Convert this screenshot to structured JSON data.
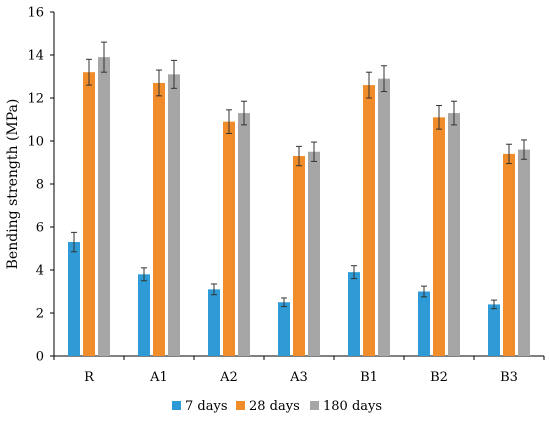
{
  "chart_data": {
    "type": "bar",
    "title": "",
    "xlabel": "",
    "ylabel": "Bending strength (MPa)",
    "ylim": [
      0,
      16
    ],
    "yticks": [
      0,
      2,
      4,
      6,
      8,
      10,
      12,
      14,
      16
    ],
    "grid": false,
    "legend_position": "bottom",
    "categories": [
      "R",
      "A1",
      "A2",
      "A3",
      "B1",
      "B2",
      "B3"
    ],
    "series": [
      {
        "name": "7 days",
        "color": "#2e9bd6",
        "values": [
          5.3,
          3.8,
          3.1,
          2.5,
          3.9,
          3.0,
          2.4
        ],
        "errors": [
          0.45,
          0.3,
          0.25,
          0.2,
          0.3,
          0.25,
          0.2
        ]
      },
      {
        "name": "28 days",
        "color": "#f08c2a",
        "values": [
          13.2,
          12.7,
          10.9,
          9.3,
          12.6,
          11.1,
          9.4
        ],
        "errors": [
          0.6,
          0.6,
          0.55,
          0.45,
          0.6,
          0.55,
          0.45
        ]
      },
      {
        "name": "180 days",
        "color": "#a6a6a6",
        "values": [
          13.9,
          13.1,
          11.3,
          9.5,
          12.9,
          11.3,
          9.6
        ],
        "errors": [
          0.7,
          0.65,
          0.55,
          0.45,
          0.6,
          0.55,
          0.45
        ]
      }
    ]
  }
}
